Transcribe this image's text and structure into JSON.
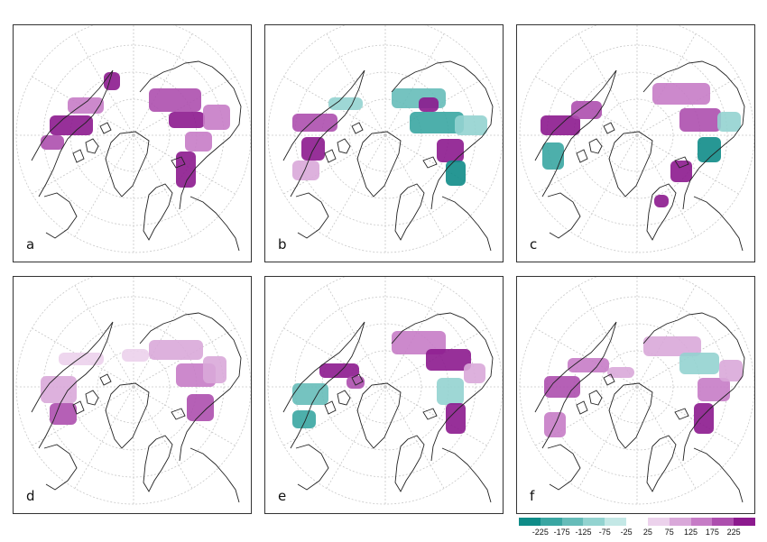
{
  "panels": [
    {
      "letter": "a"
    },
    {
      "letter": "b"
    },
    {
      "letter": "c"
    },
    {
      "letter": "d"
    },
    {
      "letter": "e"
    },
    {
      "letter": "f"
    }
  ],
  "legend": {
    "labels": [
      "-225",
      "-175",
      "-125",
      "-75",
      "-25",
      "25",
      "75",
      "125",
      "175",
      "225"
    ],
    "negative_colors": [
      "#0f8c88",
      "#3aa6a2",
      "#66bcb9",
      "#93d3d0",
      "#c4e8e6"
    ],
    "positive_colors": [
      "#ecd2ec",
      "#d9a8d9",
      "#c67cc6",
      "#ad4fae",
      "#8c1a8e"
    ]
  },
  "colors": {
    "coast": "#222222",
    "graticule": "#c8c8c8"
  }
}
